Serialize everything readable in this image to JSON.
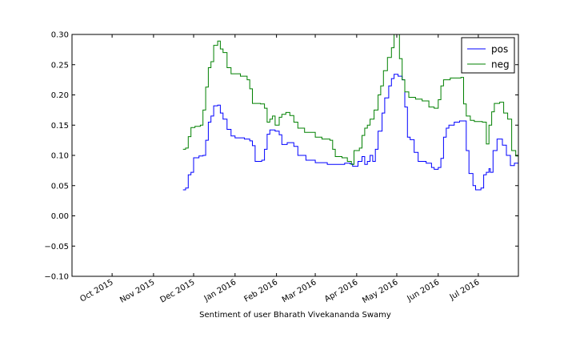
{
  "chart_data": {
    "type": "line",
    "title": "",
    "xlabel": "Sentiment of user Bharath Vivekananda Swamy",
    "ylabel": "",
    "xlim": [
      "2015-09-01",
      "2016-07-31"
    ],
    "ylim": [
      -0.1,
      0.3
    ],
    "grid": false,
    "legend_position": "top-right",
    "x_ticks": [
      {
        "date": "2015-10-01",
        "label": "Oct 2015"
      },
      {
        "date": "2015-11-01",
        "label": "Nov 2015"
      },
      {
        "date": "2015-12-01",
        "label": "Dec 2015"
      },
      {
        "date": "2016-01-01",
        "label": "Jan 2016"
      },
      {
        "date": "2016-02-01",
        "label": "Feb 2016"
      },
      {
        "date": "2016-03-01",
        "label": "Mar 2016"
      },
      {
        "date": "2016-04-01",
        "label": "Apr 2016"
      },
      {
        "date": "2016-05-01",
        "label": "May 2016"
      },
      {
        "date": "2016-06-01",
        "label": "Jun 2016"
      },
      {
        "date": "2016-07-01",
        "label": "Jul 2016"
      }
    ],
    "y_ticks": [
      {
        "value": -0.1,
        "label": "−0.10"
      },
      {
        "value": -0.05,
        "label": "−0.05"
      },
      {
        "value": 0.0,
        "label": "0.00"
      },
      {
        "value": 0.05,
        "label": "0.05"
      },
      {
        "value": 0.1,
        "label": "0.10"
      },
      {
        "value": 0.15,
        "label": "0.15"
      },
      {
        "value": 0.2,
        "label": "0.20"
      },
      {
        "value": 0.25,
        "label": "0.25"
      },
      {
        "value": 0.3,
        "label": "0.30"
      }
    ],
    "series": [
      {
        "name": "pos",
        "color": "#0000ff",
        "points": [
          [
            "2015-11-23",
            0.043
          ],
          [
            "2015-11-25",
            0.046
          ],
          [
            "2015-11-27",
            0.068
          ],
          [
            "2015-11-29",
            0.072
          ],
          [
            "2015-12-01",
            0.096
          ],
          [
            "2015-12-05",
            0.099
          ],
          [
            "2015-12-08",
            0.1
          ],
          [
            "2015-12-10",
            0.125
          ],
          [
            "2015-12-12",
            0.155
          ],
          [
            "2015-12-14",
            0.165
          ],
          [
            "2015-12-16",
            0.182
          ],
          [
            "2015-12-19",
            0.183
          ],
          [
            "2015-12-21",
            0.17
          ],
          [
            "2015-12-23",
            0.16
          ],
          [
            "2015-12-26",
            0.143
          ],
          [
            "2015-12-29",
            0.132
          ],
          [
            "2016-01-01",
            0.129
          ],
          [
            "2016-01-08",
            0.127
          ],
          [
            "2016-01-12",
            0.124
          ],
          [
            "2016-01-14",
            0.116
          ],
          [
            "2016-01-16",
            0.09
          ],
          [
            "2016-01-21",
            0.092
          ],
          [
            "2016-01-23",
            0.11
          ],
          [
            "2016-01-25",
            0.135
          ],
          [
            "2016-01-27",
            0.142
          ],
          [
            "2016-01-31",
            0.14
          ],
          [
            "2016-02-03",
            0.134
          ],
          [
            "2016-02-05",
            0.118
          ],
          [
            "2016-02-09",
            0.121
          ],
          [
            "2016-02-14",
            0.115
          ],
          [
            "2016-02-17",
            0.1
          ],
          [
            "2016-02-23",
            0.092
          ],
          [
            "2016-03-01",
            0.088
          ],
          [
            "2016-03-10",
            0.085
          ],
          [
            "2016-03-17",
            0.085
          ],
          [
            "2016-03-23",
            0.087
          ],
          [
            "2016-03-27",
            0.086
          ],
          [
            "2016-03-29",
            0.082
          ],
          [
            "2016-04-02",
            0.09
          ],
          [
            "2016-04-05",
            0.098
          ],
          [
            "2016-04-07",
            0.085
          ],
          [
            "2016-04-09",
            0.09
          ],
          [
            "2016-04-11",
            0.1
          ],
          [
            "2016-04-13",
            0.09
          ],
          [
            "2016-04-15",
            0.11
          ],
          [
            "2016-04-17",
            0.14
          ],
          [
            "2016-04-20",
            0.17
          ],
          [
            "2016-04-22",
            0.195
          ],
          [
            "2016-04-25",
            0.215
          ],
          [
            "2016-04-27",
            0.227
          ],
          [
            "2016-04-29",
            0.234
          ],
          [
            "2016-05-02",
            0.231
          ],
          [
            "2016-05-05",
            0.225
          ],
          [
            "2016-05-07",
            0.18
          ],
          [
            "2016-05-09",
            0.13
          ],
          [
            "2016-05-11",
            0.126
          ],
          [
            "2016-05-14",
            0.105
          ],
          [
            "2016-05-17",
            0.09
          ],
          [
            "2016-05-23",
            0.087
          ],
          [
            "2016-05-27",
            0.08
          ],
          [
            "2016-05-29",
            0.077
          ],
          [
            "2016-06-01",
            0.08
          ],
          [
            "2016-06-03",
            0.095
          ],
          [
            "2016-06-05",
            0.13
          ],
          [
            "2016-06-07",
            0.145
          ],
          [
            "2016-06-09",
            0.15
          ],
          [
            "2016-06-13",
            0.155
          ],
          [
            "2016-06-17",
            0.157
          ],
          [
            "2016-06-20",
            0.157
          ],
          [
            "2016-06-22",
            0.108
          ],
          [
            "2016-06-24",
            0.07
          ],
          [
            "2016-06-27",
            0.05
          ],
          [
            "2016-06-29",
            0.043
          ],
          [
            "2016-07-03",
            0.046
          ],
          [
            "2016-07-05",
            0.068
          ],
          [
            "2016-07-07",
            0.072
          ],
          [
            "2016-07-09",
            0.078
          ],
          [
            "2016-07-10",
            0.072
          ],
          [
            "2016-07-12",
            0.108
          ],
          [
            "2016-07-15",
            0.127
          ],
          [
            "2016-07-19",
            0.117
          ],
          [
            "2016-07-22",
            0.1
          ],
          [
            "2016-07-25",
            0.083
          ],
          [
            "2016-07-28",
            0.087
          ],
          [
            "2016-07-31",
            0.089
          ]
        ]
      },
      {
        "name": "neg",
        "color": "#008000",
        "points": [
          [
            "2015-11-23",
            0.11
          ],
          [
            "2015-11-25",
            0.112
          ],
          [
            "2015-11-27",
            0.131
          ],
          [
            "2015-11-29",
            0.146
          ],
          [
            "2015-12-02",
            0.148
          ],
          [
            "2015-12-06",
            0.15
          ],
          [
            "2015-12-08",
            0.175
          ],
          [
            "2015-12-10",
            0.213
          ],
          [
            "2015-12-12",
            0.245
          ],
          [
            "2015-12-14",
            0.255
          ],
          [
            "2015-12-16",
            0.282
          ],
          [
            "2015-12-19",
            0.289
          ],
          [
            "2015-12-21",
            0.276
          ],
          [
            "2015-12-23",
            0.27
          ],
          [
            "2015-12-26",
            0.245
          ],
          [
            "2015-12-29",
            0.235
          ],
          [
            "2016-01-05",
            0.231
          ],
          [
            "2016-01-10",
            0.225
          ],
          [
            "2016-01-12",
            0.21
          ],
          [
            "2016-01-14",
            0.186
          ],
          [
            "2016-01-20",
            0.185
          ],
          [
            "2016-01-23",
            0.178
          ],
          [
            "2016-01-25",
            0.155
          ],
          [
            "2016-01-27",
            0.16
          ],
          [
            "2016-01-29",
            0.165
          ],
          [
            "2016-01-31",
            0.15
          ],
          [
            "2016-02-03",
            0.163
          ],
          [
            "2016-02-05",
            0.168
          ],
          [
            "2016-02-08",
            0.171
          ],
          [
            "2016-02-11",
            0.166
          ],
          [
            "2016-02-14",
            0.155
          ],
          [
            "2016-02-17",
            0.145
          ],
          [
            "2016-02-22",
            0.138
          ],
          [
            "2016-03-01",
            0.13
          ],
          [
            "2016-03-06",
            0.127
          ],
          [
            "2016-03-12",
            0.125
          ],
          [
            "2016-03-14",
            0.11
          ],
          [
            "2016-03-16",
            0.098
          ],
          [
            "2016-03-21",
            0.096
          ],
          [
            "2016-03-25",
            0.09
          ],
          [
            "2016-03-28",
            0.085
          ],
          [
            "2016-03-30",
            0.108
          ],
          [
            "2016-04-03",
            0.112
          ],
          [
            "2016-04-05",
            0.133
          ],
          [
            "2016-04-07",
            0.145
          ],
          [
            "2016-04-09",
            0.15
          ],
          [
            "2016-04-11",
            0.16
          ],
          [
            "2016-04-14",
            0.175
          ],
          [
            "2016-04-17",
            0.2
          ],
          [
            "2016-04-19",
            0.215
          ],
          [
            "2016-04-21",
            0.24
          ],
          [
            "2016-04-24",
            0.262
          ],
          [
            "2016-04-27",
            0.278
          ],
          [
            "2016-04-29",
            0.3
          ],
          [
            "2016-05-01",
            0.3
          ],
          [
            "2016-05-02",
            0.3
          ],
          [
            "2016-05-03",
            0.26
          ],
          [
            "2016-05-05",
            0.225
          ],
          [
            "2016-05-07",
            0.205
          ],
          [
            "2016-05-10",
            0.196
          ],
          [
            "2016-05-15",
            0.193
          ],
          [
            "2016-05-20",
            0.19
          ],
          [
            "2016-05-25",
            0.18
          ],
          [
            "2016-05-29",
            0.178
          ],
          [
            "2016-06-01",
            0.192
          ],
          [
            "2016-06-03",
            0.215
          ],
          [
            "2016-06-05",
            0.225
          ],
          [
            "2016-06-10",
            0.228
          ],
          [
            "2016-06-18",
            0.229
          ],
          [
            "2016-06-20",
            0.185
          ],
          [
            "2016-06-22",
            0.165
          ],
          [
            "2016-06-25",
            0.158
          ],
          [
            "2016-06-28",
            0.156
          ],
          [
            "2016-07-01",
            0.156
          ],
          [
            "2016-07-04",
            0.155
          ],
          [
            "2016-07-07",
            0.119
          ],
          [
            "2016-07-09",
            0.15
          ],
          [
            "2016-07-11",
            0.172
          ],
          [
            "2016-07-13",
            0.186
          ],
          [
            "2016-07-17",
            0.188
          ],
          [
            "2016-07-20",
            0.17
          ],
          [
            "2016-07-23",
            0.16
          ],
          [
            "2016-07-26",
            0.108
          ],
          [
            "2016-07-29",
            0.099
          ],
          [
            "2016-07-31",
            0.099
          ]
        ]
      }
    ]
  }
}
